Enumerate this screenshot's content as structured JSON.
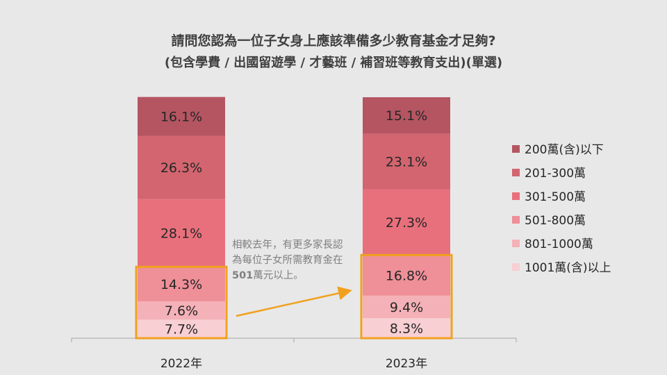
{
  "chart_data": {
    "type": "bar",
    "stacked": true,
    "title": "請問您認為一位子女身上應該準備多少教育基金才足夠?",
    "subtitle": "(包含學費 / 出國留遊學 / 才藝班 / 補習班等教育支出)(單選)",
    "categories": [
      "2022年",
      "2023年"
    ],
    "value_suffix": "%",
    "series": [
      {
        "name": "1001萬(含)以上",
        "values": [
          7.7,
          8.3
        ]
      },
      {
        "name": "801-1000萬",
        "values": [
          7.6,
          9.4
        ]
      },
      {
        "name": "501-800萬",
        "values": [
          14.3,
          16.8
        ]
      },
      {
        "name": "301-500萬",
        "values": [
          28.1,
          27.3
        ]
      },
      {
        "name": "201-300萬",
        "values": [
          26.3,
          23.1
        ]
      },
      {
        "name": "200萬(含)以下",
        "values": [
          16.1,
          15.1
        ]
      }
    ],
    "legend_order": [
      "200萬(含)以下",
      "201-300萬",
      "301-500萬",
      "501-800萬",
      "801-1000萬",
      "1001萬(含)以上"
    ],
    "legend_position": "right",
    "ylim": [
      0,
      100
    ],
    "highlight_series": [
      "1001萬(含)以上",
      "801-1000萬",
      "501-800萬"
    ],
    "highlight_color": "#f0a11e",
    "annotation": {
      "text_parts": [
        "相較去年，有更多家長認為每位子女所需教育金在",
        "501",
        "萬元以上。"
      ]
    },
    "colors": {
      "200萬(含)以下": "#b55562",
      "201-300萬": "#d2656f",
      "301-500萬": "#e8707c",
      "501-800萬": "#ef8f98",
      "801-1000萬": "#f4b1b8",
      "1001萬(含)以上": "#f8cfd3"
    },
    "label_color": "#262626",
    "annotation_color": "#7f7f7f",
    "axis_color": "#a6a6a6"
  }
}
